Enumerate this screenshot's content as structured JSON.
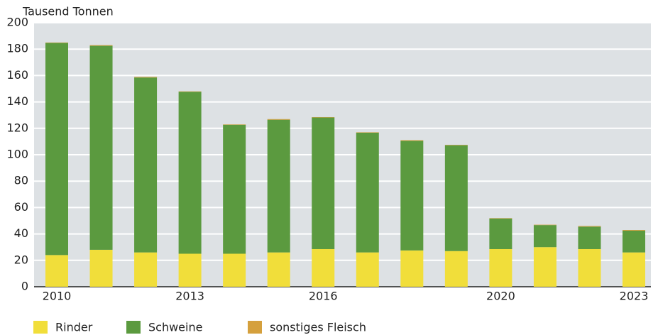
{
  "chart_data": {
    "type": "stacked_bar",
    "y_axis_label": "Tausend Tonnen",
    "categories": [
      "2010",
      null,
      null,
      "2013",
      null,
      null,
      "2016",
      null,
      null,
      null,
      "2020",
      null,
      null,
      "2023"
    ],
    "series": [
      {
        "name": "Rinder",
        "color": "#f1de3a",
        "values": [
          24,
          28,
          26,
          25,
          25,
          26,
          28.5,
          26,
          27.5,
          27,
          28.5,
          30,
          28.5,
          26
        ]
      },
      {
        "name": "Schweine",
        "color": "#5b9a3f",
        "values": [
          160.7,
          154.5,
          132.5,
          122.7,
          97.7,
          100.5,
          99.7,
          90.7,
          83,
          80.2,
          23.2,
          16.7,
          17,
          16.5
        ]
      },
      {
        "name": "sonstiges Fleisch",
        "color": "#d5a03d",
        "values": [
          0.3,
          0.5,
          0.5,
          0.3,
          0.3,
          0.5,
          0.3,
          0.3,
          0.5,
          0.3,
          0.3,
          0.3,
          0.5,
          0.5
        ]
      }
    ],
    "ylim": [
      0,
      200
    ],
    "yticks": [
      0,
      20,
      40,
      60,
      80,
      100,
      120,
      140,
      160,
      180,
      200
    ],
    "grid": true
  }
}
